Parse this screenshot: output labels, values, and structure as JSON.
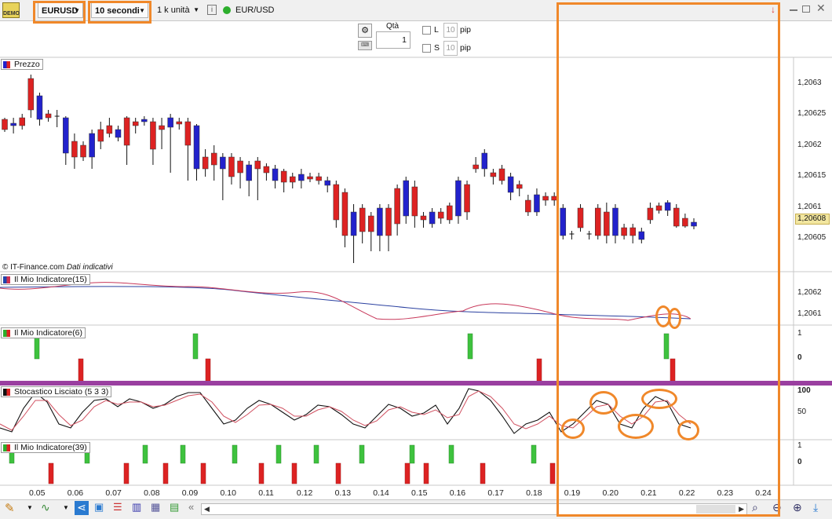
{
  "toolbar": {
    "demo_label": "DEMO",
    "symbol_label": "EURUSD",
    "interval_label": "10 secondi",
    "units_label": "1 k unità",
    "info_icon_label": "i",
    "instrument_label": "EUR/USD"
  },
  "order_panel": {
    "qty_label": "Qtà",
    "qty_value": "1",
    "l_label": "L",
    "s_label": "S",
    "l_value": "10",
    "s_value": "10",
    "pip_label": "pip",
    "pip_label2": "pip"
  },
  "price_panel": {
    "label": "Prezzo",
    "copyright": "© IT-Finance.com",
    "disclaimer": "Dati indicativi",
    "y_ticks": [
      "1,2063",
      "1,20625",
      "1,2062",
      "1,20615",
      "1,2061",
      "1,20605"
    ],
    "current_price": "1,20608",
    "colors": {
      "up": "#2222cc",
      "down": "#dd2222"
    }
  },
  "indicator1": {
    "label": "Il Mio Indicatore(15)",
    "y_ticks": [
      "1,2062",
      "1,2061"
    ]
  },
  "indicator2": {
    "label": "Il Mio Indicatore(6)",
    "y_ticks": [
      "1",
      "0"
    ]
  },
  "stochastic": {
    "label": "Stocastico Lisciato (5 3 3)",
    "y_ticks": [
      "100",
      "50"
    ]
  },
  "indicator3": {
    "label": "Il Mio Indicatore(39)",
    "y_ticks": [
      "1",
      "0"
    ]
  },
  "x_axis": {
    "ticks": [
      "0.05",
      "0.06",
      "0.07",
      "0.08",
      "0.09",
      "0.10",
      "0.11",
      "0.12",
      "0.13",
      "0.14",
      "0.15",
      "0.16",
      "0.17",
      "0.18",
      "0.19",
      "0.20",
      "0.21",
      "0.22",
      "0.23",
      "0.24"
    ]
  },
  "annotation_colors": {
    "orange": "#f0882a",
    "purple": "#9a3fa0"
  }
}
